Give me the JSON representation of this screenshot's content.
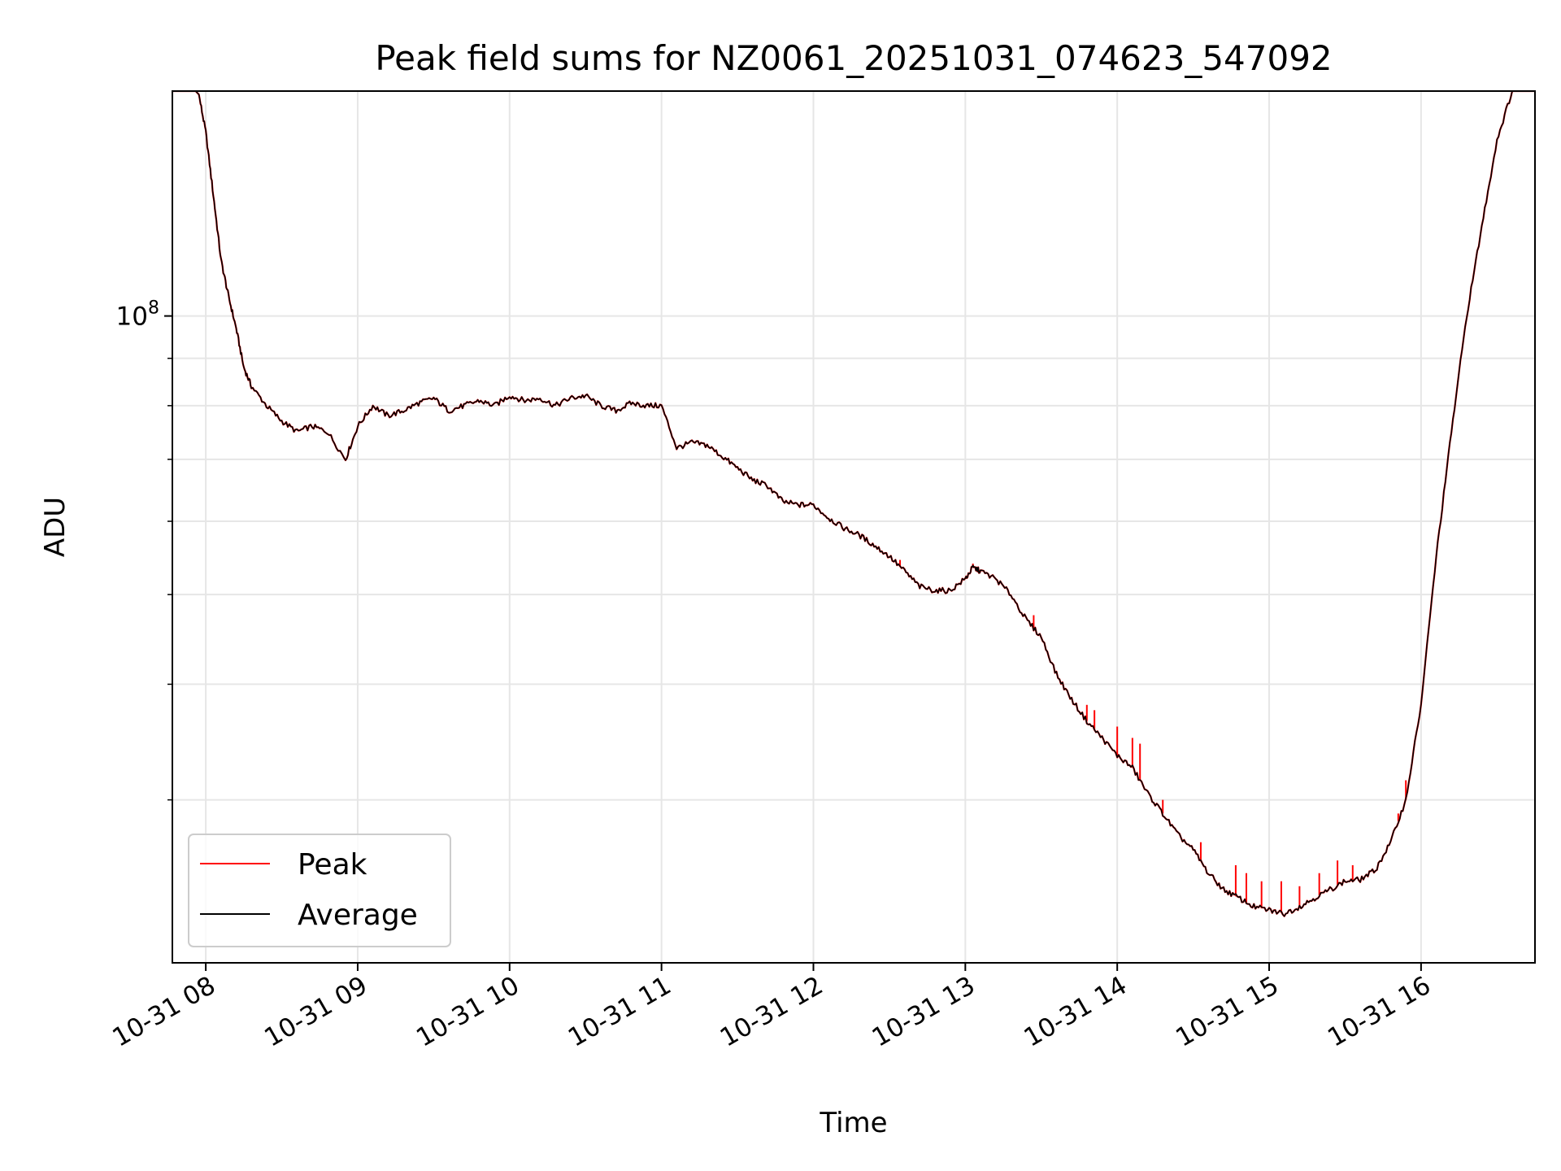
{
  "chart_data": {
    "type": "line",
    "title": "Peak field sums for NZ0061_20251031_074623_547092",
    "xlabel": "Time",
    "ylabel": "ADU",
    "yscale": "log",
    "ylim": [
      20000000,
      175000000
    ],
    "xlim": [
      7.78,
      16.75
    ],
    "x_unit": "hours on 2025-10-31",
    "grid": true,
    "legend_position": "lower-left",
    "x_tick_values": [
      8,
      9,
      10,
      11,
      12,
      13,
      14,
      15,
      16
    ],
    "x_tick_labels": [
      "10-31 08",
      "10-31 09",
      "10-31 10",
      "10-31 11",
      "10-31 12",
      "10-31 13",
      "10-31 14",
      "10-31 15",
      "10-31 16"
    ],
    "y_tick_values": [
      100000000
    ],
    "y_tick_labels": [
      "10^8"
    ],
    "y_minor_tick_values": [
      30000000,
      40000000,
      50000000,
      60000000,
      70000000,
      80000000,
      90000000,
      200000000
    ],
    "colors": {
      "peak": "#ff0000",
      "average": "#000000",
      "grid": "#e6e6e6",
      "legend_border": "#cccccc"
    },
    "series": [
      {
        "name": "Average",
        "key": "average",
        "points": [
          [
            7.78,
            175000000
          ],
          [
            7.95,
            175000000
          ],
          [
            8.0,
            158000000
          ],
          [
            8.05,
            135000000
          ],
          [
            8.1,
            115000000
          ],
          [
            8.15,
            105000000
          ],
          [
            8.2,
            97000000
          ],
          [
            8.25,
            88000000
          ],
          [
            8.3,
            84000000
          ],
          [
            8.4,
            80000000
          ],
          [
            8.5,
            77000000
          ],
          [
            8.6,
            75000000
          ],
          [
            8.7,
            76000000
          ],
          [
            8.8,
            75000000
          ],
          [
            8.92,
            70000000
          ],
          [
            9.0,
            76000000
          ],
          [
            9.1,
            80000000
          ],
          [
            9.2,
            78000000
          ],
          [
            9.3,
            79000000
          ],
          [
            9.4,
            80500000
          ],
          [
            9.5,
            81500000
          ],
          [
            9.6,
            79000000
          ],
          [
            9.7,
            80000000
          ],
          [
            9.8,
            81000000
          ],
          [
            9.9,
            80000000
          ],
          [
            10.0,
            82000000
          ],
          [
            10.1,
            81000000
          ],
          [
            10.2,
            81500000
          ],
          [
            10.3,
            80000000
          ],
          [
            10.4,
            81500000
          ],
          [
            10.5,
            82000000
          ],
          [
            10.6,
            80000000
          ],
          [
            10.7,
            79000000
          ],
          [
            10.8,
            80500000
          ],
          [
            10.9,
            80000000
          ],
          [
            11.0,
            80000000
          ],
          [
            11.1,
            72000000
          ],
          [
            11.2,
            73000000
          ],
          [
            11.3,
            72500000
          ],
          [
            11.4,
            70500000
          ],
          [
            11.5,
            68500000
          ],
          [
            11.6,
            66500000
          ],
          [
            11.7,
            65500000
          ],
          [
            11.8,
            63000000
          ],
          [
            11.9,
            62500000
          ],
          [
            12.0,
            62500000
          ],
          [
            12.1,
            60500000
          ],
          [
            12.2,
            59000000
          ],
          [
            12.3,
            58000000
          ],
          [
            12.4,
            56500000
          ],
          [
            12.5,
            55000000
          ],
          [
            12.6,
            53000000
          ],
          [
            12.7,
            51000000
          ],
          [
            12.8,
            50500000
          ],
          [
            12.9,
            50500000
          ],
          [
            13.0,
            52000000
          ],
          [
            13.05,
            53500000
          ],
          [
            13.1,
            53000000
          ],
          [
            13.2,
            52000000
          ],
          [
            13.3,
            50000000
          ],
          [
            13.4,
            47000000
          ],
          [
            13.5,
            45000000
          ],
          [
            13.6,
            41000000
          ],
          [
            13.7,
            38500000
          ],
          [
            13.8,
            36500000
          ],
          [
            13.9,
            35000000
          ],
          [
            14.0,
            33500000
          ],
          [
            14.1,
            32500000
          ],
          [
            14.2,
            30500000
          ],
          [
            14.3,
            29000000
          ],
          [
            14.4,
            27500000
          ],
          [
            14.5,
            26500000
          ],
          [
            14.6,
            25000000
          ],
          [
            14.7,
            24000000
          ],
          [
            14.8,
            23500000
          ],
          [
            14.9,
            23000000
          ],
          [
            15.0,
            22800000
          ],
          [
            15.1,
            22600000
          ],
          [
            15.2,
            23000000
          ],
          [
            15.3,
            23500000
          ],
          [
            15.4,
            24000000
          ],
          [
            15.5,
            24500000
          ],
          [
            15.6,
            24600000
          ],
          [
            15.7,
            25200000
          ],
          [
            15.8,
            27000000
          ],
          [
            15.9,
            30000000
          ],
          [
            16.0,
            38000000
          ],
          [
            16.1,
            55000000
          ],
          [
            16.2,
            75000000
          ],
          [
            16.3,
            100000000
          ],
          [
            16.4,
            125000000
          ],
          [
            16.5,
            155000000
          ],
          [
            16.6,
            175000000
          ],
          [
            16.75,
            175000000
          ]
        ]
      },
      {
        "name": "Peak",
        "key": "peak",
        "points": [
          [
            7.78,
            175000000
          ],
          [
            7.95,
            175000000
          ],
          [
            8.0,
            158000000
          ],
          [
            8.05,
            135000000
          ],
          [
            8.1,
            115000000
          ],
          [
            8.15,
            105000000
          ],
          [
            8.2,
            97000000
          ],
          [
            8.25,
            88000000
          ],
          [
            8.3,
            84000000
          ],
          [
            8.4,
            80000000
          ],
          [
            8.5,
            77000000
          ],
          [
            8.6,
            75000000
          ],
          [
            8.7,
            76000000
          ],
          [
            8.8,
            75000000
          ],
          [
            8.92,
            70000000
          ],
          [
            9.0,
            76000000
          ],
          [
            9.1,
            80000000
          ],
          [
            9.2,
            78000000
          ],
          [
            9.3,
            79000000
          ],
          [
            9.4,
            80500000
          ],
          [
            9.5,
            81500000
          ],
          [
            9.6,
            79000000
          ],
          [
            9.7,
            80000000
          ],
          [
            9.8,
            81000000
          ],
          [
            9.9,
            80000000
          ],
          [
            10.0,
            82000000
          ],
          [
            10.1,
            81000000
          ],
          [
            10.2,
            81500000
          ],
          [
            10.3,
            80000000
          ],
          [
            10.4,
            81500000
          ],
          [
            10.5,
            82000000
          ],
          [
            10.6,
            80000000
          ],
          [
            10.7,
            79000000
          ],
          [
            10.8,
            80500000
          ],
          [
            10.9,
            80000000
          ],
          [
            11.0,
            80000000
          ],
          [
            11.1,
            72000000
          ],
          [
            11.2,
            73000000
          ],
          [
            11.3,
            72500000
          ],
          [
            11.4,
            70500000
          ],
          [
            11.5,
            68500000
          ],
          [
            11.6,
            66500000
          ],
          [
            11.7,
            65500000
          ],
          [
            11.8,
            63000000
          ],
          [
            11.9,
            62500000
          ],
          [
            12.0,
            62500000
          ],
          [
            12.1,
            60500000
          ],
          [
            12.2,
            59000000
          ],
          [
            12.3,
            58000000
          ],
          [
            12.4,
            56500000
          ],
          [
            12.5,
            55000000
          ],
          [
            12.6,
            53000000
          ],
          [
            12.7,
            51000000
          ],
          [
            12.8,
            50500000
          ],
          [
            12.9,
            50500000
          ],
          [
            13.0,
            52000000
          ],
          [
            13.05,
            53500000
          ],
          [
            13.1,
            53000000
          ],
          [
            13.2,
            52000000
          ],
          [
            13.3,
            50000000
          ],
          [
            13.4,
            47000000
          ],
          [
            13.5,
            45000000
          ],
          [
            13.6,
            41000000
          ],
          [
            13.7,
            38500000
          ],
          [
            13.8,
            36500000
          ],
          [
            13.9,
            35000000
          ],
          [
            14.0,
            33500000
          ],
          [
            14.1,
            32500000
          ],
          [
            14.2,
            30500000
          ],
          [
            14.3,
            29000000
          ],
          [
            14.4,
            27500000
          ],
          [
            14.5,
            26500000
          ],
          [
            14.6,
            25000000
          ],
          [
            14.7,
            24000000
          ],
          [
            14.8,
            23500000
          ],
          [
            14.9,
            23000000
          ],
          [
            15.0,
            22800000
          ],
          [
            15.1,
            22600000
          ],
          [
            15.2,
            23000000
          ],
          [
            15.3,
            23500000
          ],
          [
            15.4,
            24000000
          ],
          [
            15.5,
            24500000
          ],
          [
            15.6,
            24600000
          ],
          [
            15.7,
            25200000
          ],
          [
            15.8,
            27000000
          ],
          [
            15.9,
            30000000
          ],
          [
            16.0,
            38000000
          ],
          [
            16.1,
            55000000
          ],
          [
            16.2,
            75000000
          ],
          [
            16.3,
            100000000
          ],
          [
            16.4,
            125000000
          ],
          [
            16.5,
            155000000
          ],
          [
            16.6,
            175000000
          ],
          [
            16.75,
            175000000
          ]
        ],
        "spikes": [
          [
            12.57,
            54500000
          ],
          [
            13.05,
            54000000
          ],
          [
            13.45,
            47500000
          ],
          [
            13.8,
            38000000
          ],
          [
            13.85,
            37500000
          ],
          [
            14.0,
            36000000
          ],
          [
            14.1,
            35000000
          ],
          [
            14.15,
            34500000
          ],
          [
            14.3,
            30000000
          ],
          [
            14.55,
            27000000
          ],
          [
            14.78,
            25500000
          ],
          [
            14.85,
            25000000
          ],
          [
            14.95,
            24500000
          ],
          [
            15.08,
            24500000
          ],
          [
            15.2,
            24200000
          ],
          [
            15.33,
            25000000
          ],
          [
            15.45,
            25800000
          ],
          [
            15.55,
            25500000
          ],
          [
            15.85,
            29000000
          ],
          [
            15.9,
            31500000
          ]
        ]
      }
    ]
  }
}
